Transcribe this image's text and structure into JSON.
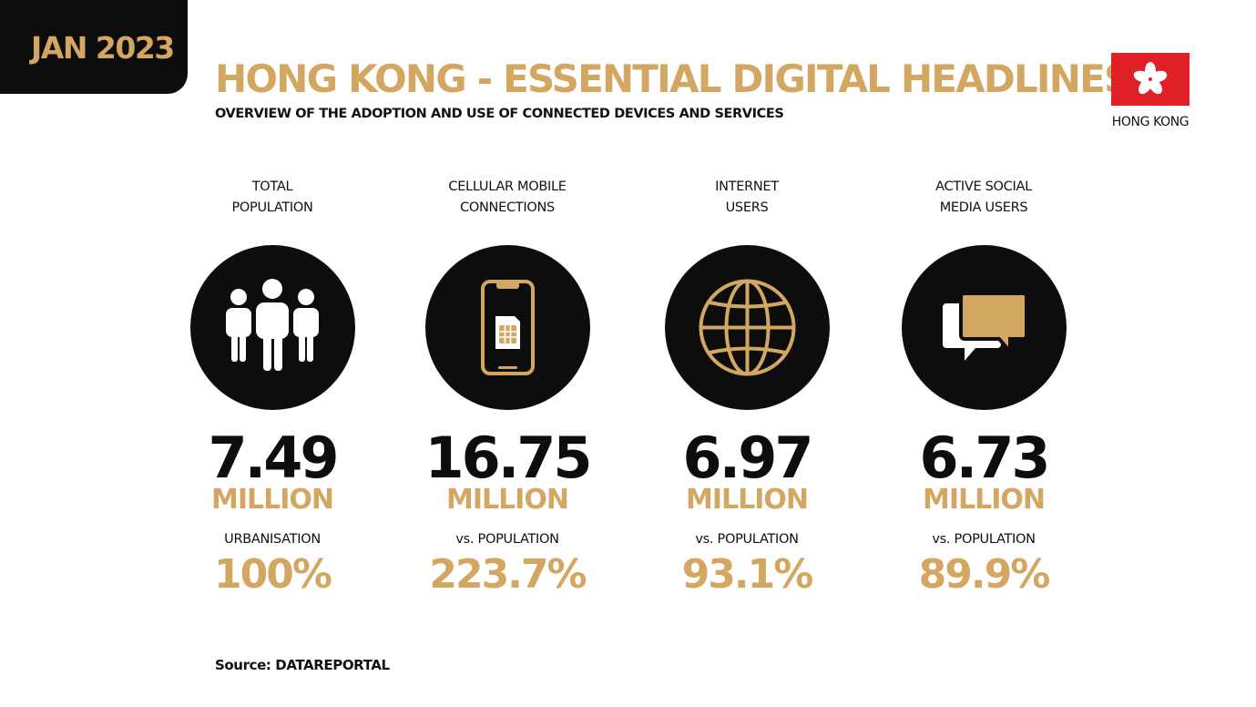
{
  "header": {
    "date": "JAN 2023",
    "title": "HONG KONG - ESSENTIAL DIGITAL HEADLINES",
    "subtitle": "OVERVIEW OF THE ADOPTION AND USE OF CONNECTED DEVICES AND SERVICES",
    "flag_label": "HONG KONG"
  },
  "stats": [
    {
      "label": "TOTAL\nPOPULATION",
      "icon": "people-icon",
      "value": "7.49",
      "unit": "MILLION",
      "sub_label": "URBANISATION",
      "sub_value": "100%"
    },
    {
      "label": "CELLULAR MOBILE\nCONNECTIONS",
      "icon": "mobile-phone-sim-icon",
      "value": "16.75",
      "unit": "MILLION",
      "sub_label": "vs. POPULATION",
      "sub_value": "223.7%"
    },
    {
      "label": "INTERNET\nUSERS",
      "icon": "globe-icon",
      "value": "6.97",
      "unit": "MILLION",
      "sub_label": "vs. POPULATION",
      "sub_value": "93.1%"
    },
    {
      "label": "ACTIVE SOCIAL\nMEDIA USERS",
      "icon": "chat-bubbles-icon",
      "value": "6.73",
      "unit": "MILLION",
      "sub_label": "vs. POPULATION",
      "sub_value": "89.9%"
    }
  ],
  "footer": {
    "source": "Source: DATAREPORTAL"
  },
  "colors": {
    "gold": "#d3a761",
    "black": "#0d0d0d",
    "flag_red": "#df2026"
  }
}
